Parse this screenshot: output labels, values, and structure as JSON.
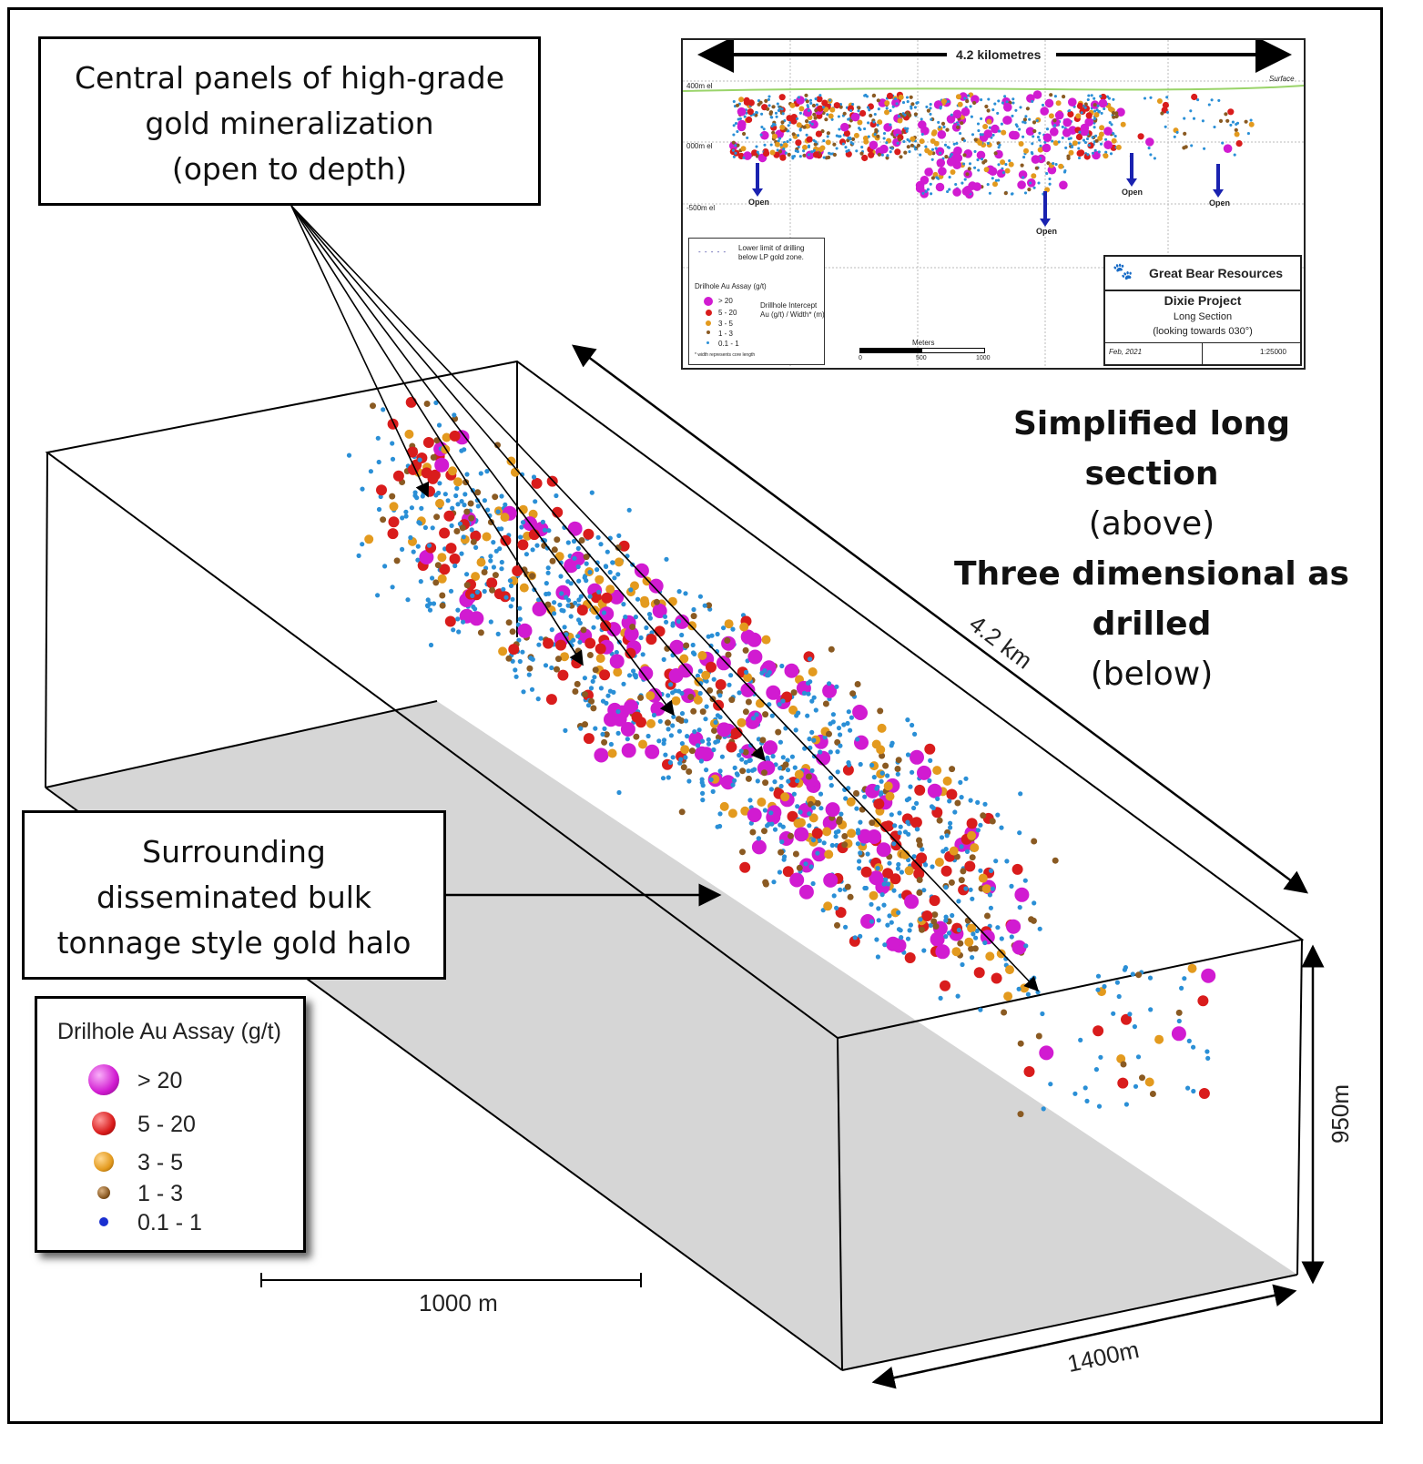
{
  "callouts": {
    "central": [
      "Central panels of high-grade",
      "gold mineralization",
      "(open to depth)"
    ],
    "halo": [
      "Surrounding",
      "disseminated bulk",
      "tonnage style gold halo"
    ]
  },
  "side_text": {
    "line1": "Simplified long section",
    "line2": "(above)",
    "line3": "Three dimensional as",
    "line4": "drilled",
    "line5": "(below)"
  },
  "dimensions": {
    "length": "4.2 km",
    "height": "950m",
    "width": "1400m",
    "scale_bar": "1000 m"
  },
  "legend": {
    "title": "Drilhole Au Assay (g/t)",
    "items": [
      {
        "label": "> 20",
        "color": "#d11bd1"
      },
      {
        "label": "5 - 20",
        "color": "#d91c1c"
      },
      {
        "label": "3 - 5",
        "color": "#e39a1e"
      },
      {
        "label": "1 - 3",
        "color": "#8a5a22"
      },
      {
        "label": "0.1 - 1",
        "color": "#1a2fd0"
      }
    ]
  },
  "inset": {
    "span_label": "4.2 kilometres",
    "surface_label": "Surface",
    "elevations": [
      "400m el",
      "000m el",
      "-500m el"
    ],
    "open_label": "Open",
    "legend": {
      "lower_limit": [
        "Lower limit of drilling",
        "below LP gold zone."
      ],
      "title": "Drilhole Au Assay (g/t)",
      "items": [
        "> 20",
        "5 - 20",
        "3 - 5",
        "1 - 3",
        "0.1 - 1"
      ],
      "intercept": [
        "Drillhole Intercept",
        "Au (g/t) / Width* (m)"
      ],
      "footnote": "* width represents core length"
    },
    "scale": {
      "title": "Meters",
      "ticks": [
        "0",
        "500",
        "1000"
      ]
    },
    "title_block": {
      "company": "Great Bear Resources",
      "project": "Dixie Project",
      "subtitle": "Long Section",
      "view": "(looking towards 030°)",
      "date": "Feb, 2021",
      "scale": "1:25000"
    }
  },
  "colors": {
    "high": "#d11bd1",
    "red": "#d91c1c",
    "orange": "#e39a1e",
    "brown": "#8a5a22",
    "blue": "#2a8fd6",
    "floor": "#d6d6d6",
    "arrow_blue": "#1a22b0",
    "surface": "#9ad46a"
  }
}
